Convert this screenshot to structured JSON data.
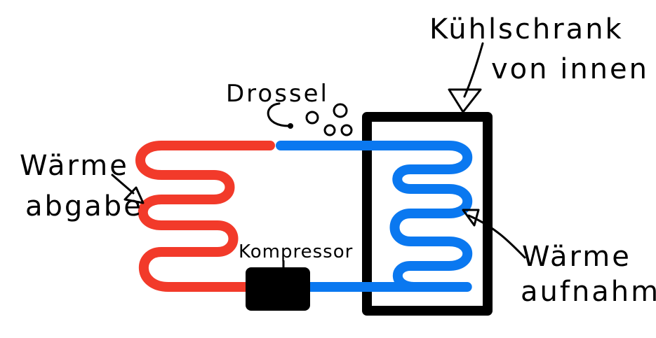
{
  "labels": {
    "kuehlschrank_line1": "Kühlschrank",
    "kuehlschrank_line2": "von innen",
    "drossel": "Drossel",
    "waerme_abgabe_line1": "Wärme",
    "waerme_abgabe_line2": "abgabe",
    "kompressor": "Kompressor",
    "waerme_aufnahme_line1": "Wärme",
    "waerme_aufnahme_line2": "aufnahme"
  },
  "colors": {
    "hot_pipe": "#f23a2a",
    "cold_pipe": "#0a78f0",
    "outline": "#000000",
    "background": "#ffffff"
  }
}
